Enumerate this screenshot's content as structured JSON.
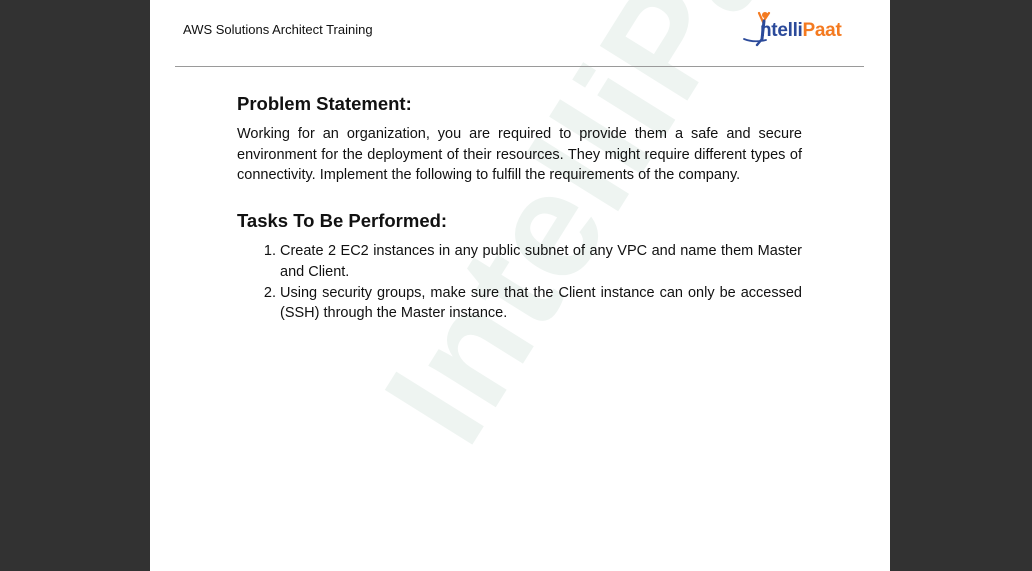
{
  "header": {
    "title": "AWS Solutions Architect Training",
    "logo": {
      "part1": "ntelli",
      "part2": "Paat",
      "icon": "intellipaat-figure-icon",
      "colors": {
        "blue": "#2b4a9a",
        "orange": "#f47a20"
      }
    }
  },
  "watermark": "IntelliPaat",
  "problem": {
    "heading": "Problem Statement:",
    "text": "Working for an organization, you are required to provide them a safe and secure environment for the deployment of their resources. They might require different types of connectivity. Implement the following to fulfill the requirements of the company."
  },
  "tasks": {
    "heading": "Tasks To Be Performed:",
    "items": [
      "Create 2 EC2 instances in any public subnet of any VPC and name them Master and Client.",
      "Using security groups, make sure that the Client instance can only be accessed (SSH) through the Master instance."
    ]
  },
  "colors": {
    "viewer_background": "#323232",
    "page_background": "#ffffff",
    "text": "#111111"
  }
}
